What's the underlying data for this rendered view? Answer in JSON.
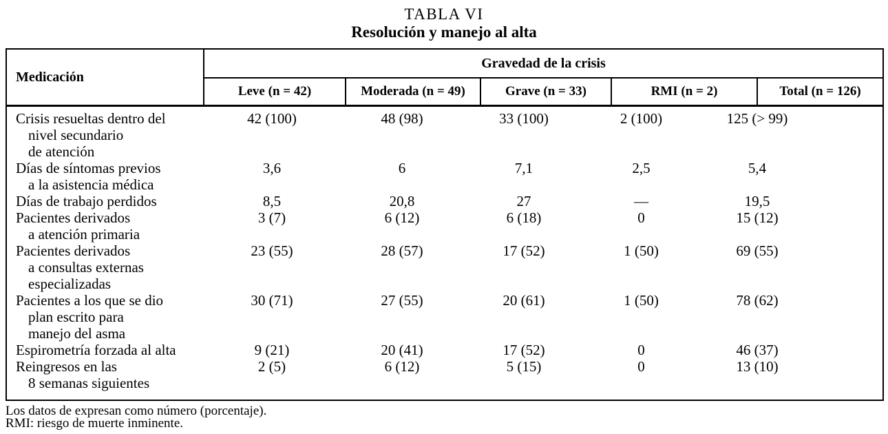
{
  "page": {
    "title": "TABLA VI",
    "subtitle": "Resolución y manejo al alta"
  },
  "table": {
    "corner_label": "Medicación",
    "group_header": "Gravedad de la crisis",
    "columns": [
      "Leve (n = 42)",
      "Moderada (n = 49)",
      "Grave (n = 33)",
      "RMI (n = 2)",
      "Total (n = 126)"
    ],
    "rows": [
      {
        "label_lines": [
          "Crisis resueltas dentro del",
          "nivel secundario",
          "de atención"
        ],
        "values": [
          "42 (100)",
          "48 (98)",
          "33 (100)",
          "2 (100)",
          "125 (> 99)"
        ]
      },
      {
        "label_lines": [
          "Días de síntomas previos",
          "a la asistencia médica"
        ],
        "values": [
          "3,6",
          "6",
          "7,1",
          "2,5",
          "5,4"
        ]
      },
      {
        "label_lines": [
          "Días de trabajo perdidos"
        ],
        "values": [
          "8,5",
          "20,8",
          "27",
          "—",
          "19,5"
        ]
      },
      {
        "label_lines": [
          "Pacientes derivados",
          "a atención primaria"
        ],
        "values": [
          "3 (7)",
          "6 (12)",
          "6 (18)",
          "0",
          "15 (12)"
        ]
      },
      {
        "label_lines": [
          "Pacientes derivados",
          "a consultas externas",
          "especializadas"
        ],
        "values": [
          "23 (55)",
          "28 (57)",
          "17 (52)",
          "1 (50)",
          "69 (55)"
        ]
      },
      {
        "label_lines": [
          "Pacientes a los que se dio",
          "plan escrito para",
          "manejo del asma"
        ],
        "values": [
          "30 (71)",
          "27 (55)",
          "20 (61)",
          "1 (50)",
          "78 (62)"
        ]
      },
      {
        "label_lines": [
          "Espirometría forzada al alta"
        ],
        "values": [
          "9 (21)",
          "20 (41)",
          "17 (52)",
          "0",
          "46 (37)"
        ]
      },
      {
        "label_lines": [
          "Reingresos en las",
          "8 semanas siguientes"
        ],
        "values": [
          "2 (5)",
          "6 (12)",
          "5 (15)",
          "0",
          "13 (10)"
        ]
      }
    ],
    "footnotes": [
      "Los datos de expresan como número (porcentaje).",
      "RMI: riesgo de muerte inminente."
    ]
  },
  "colors": {
    "text": "#000000",
    "background": "#ffffff",
    "border": "#000000"
  }
}
